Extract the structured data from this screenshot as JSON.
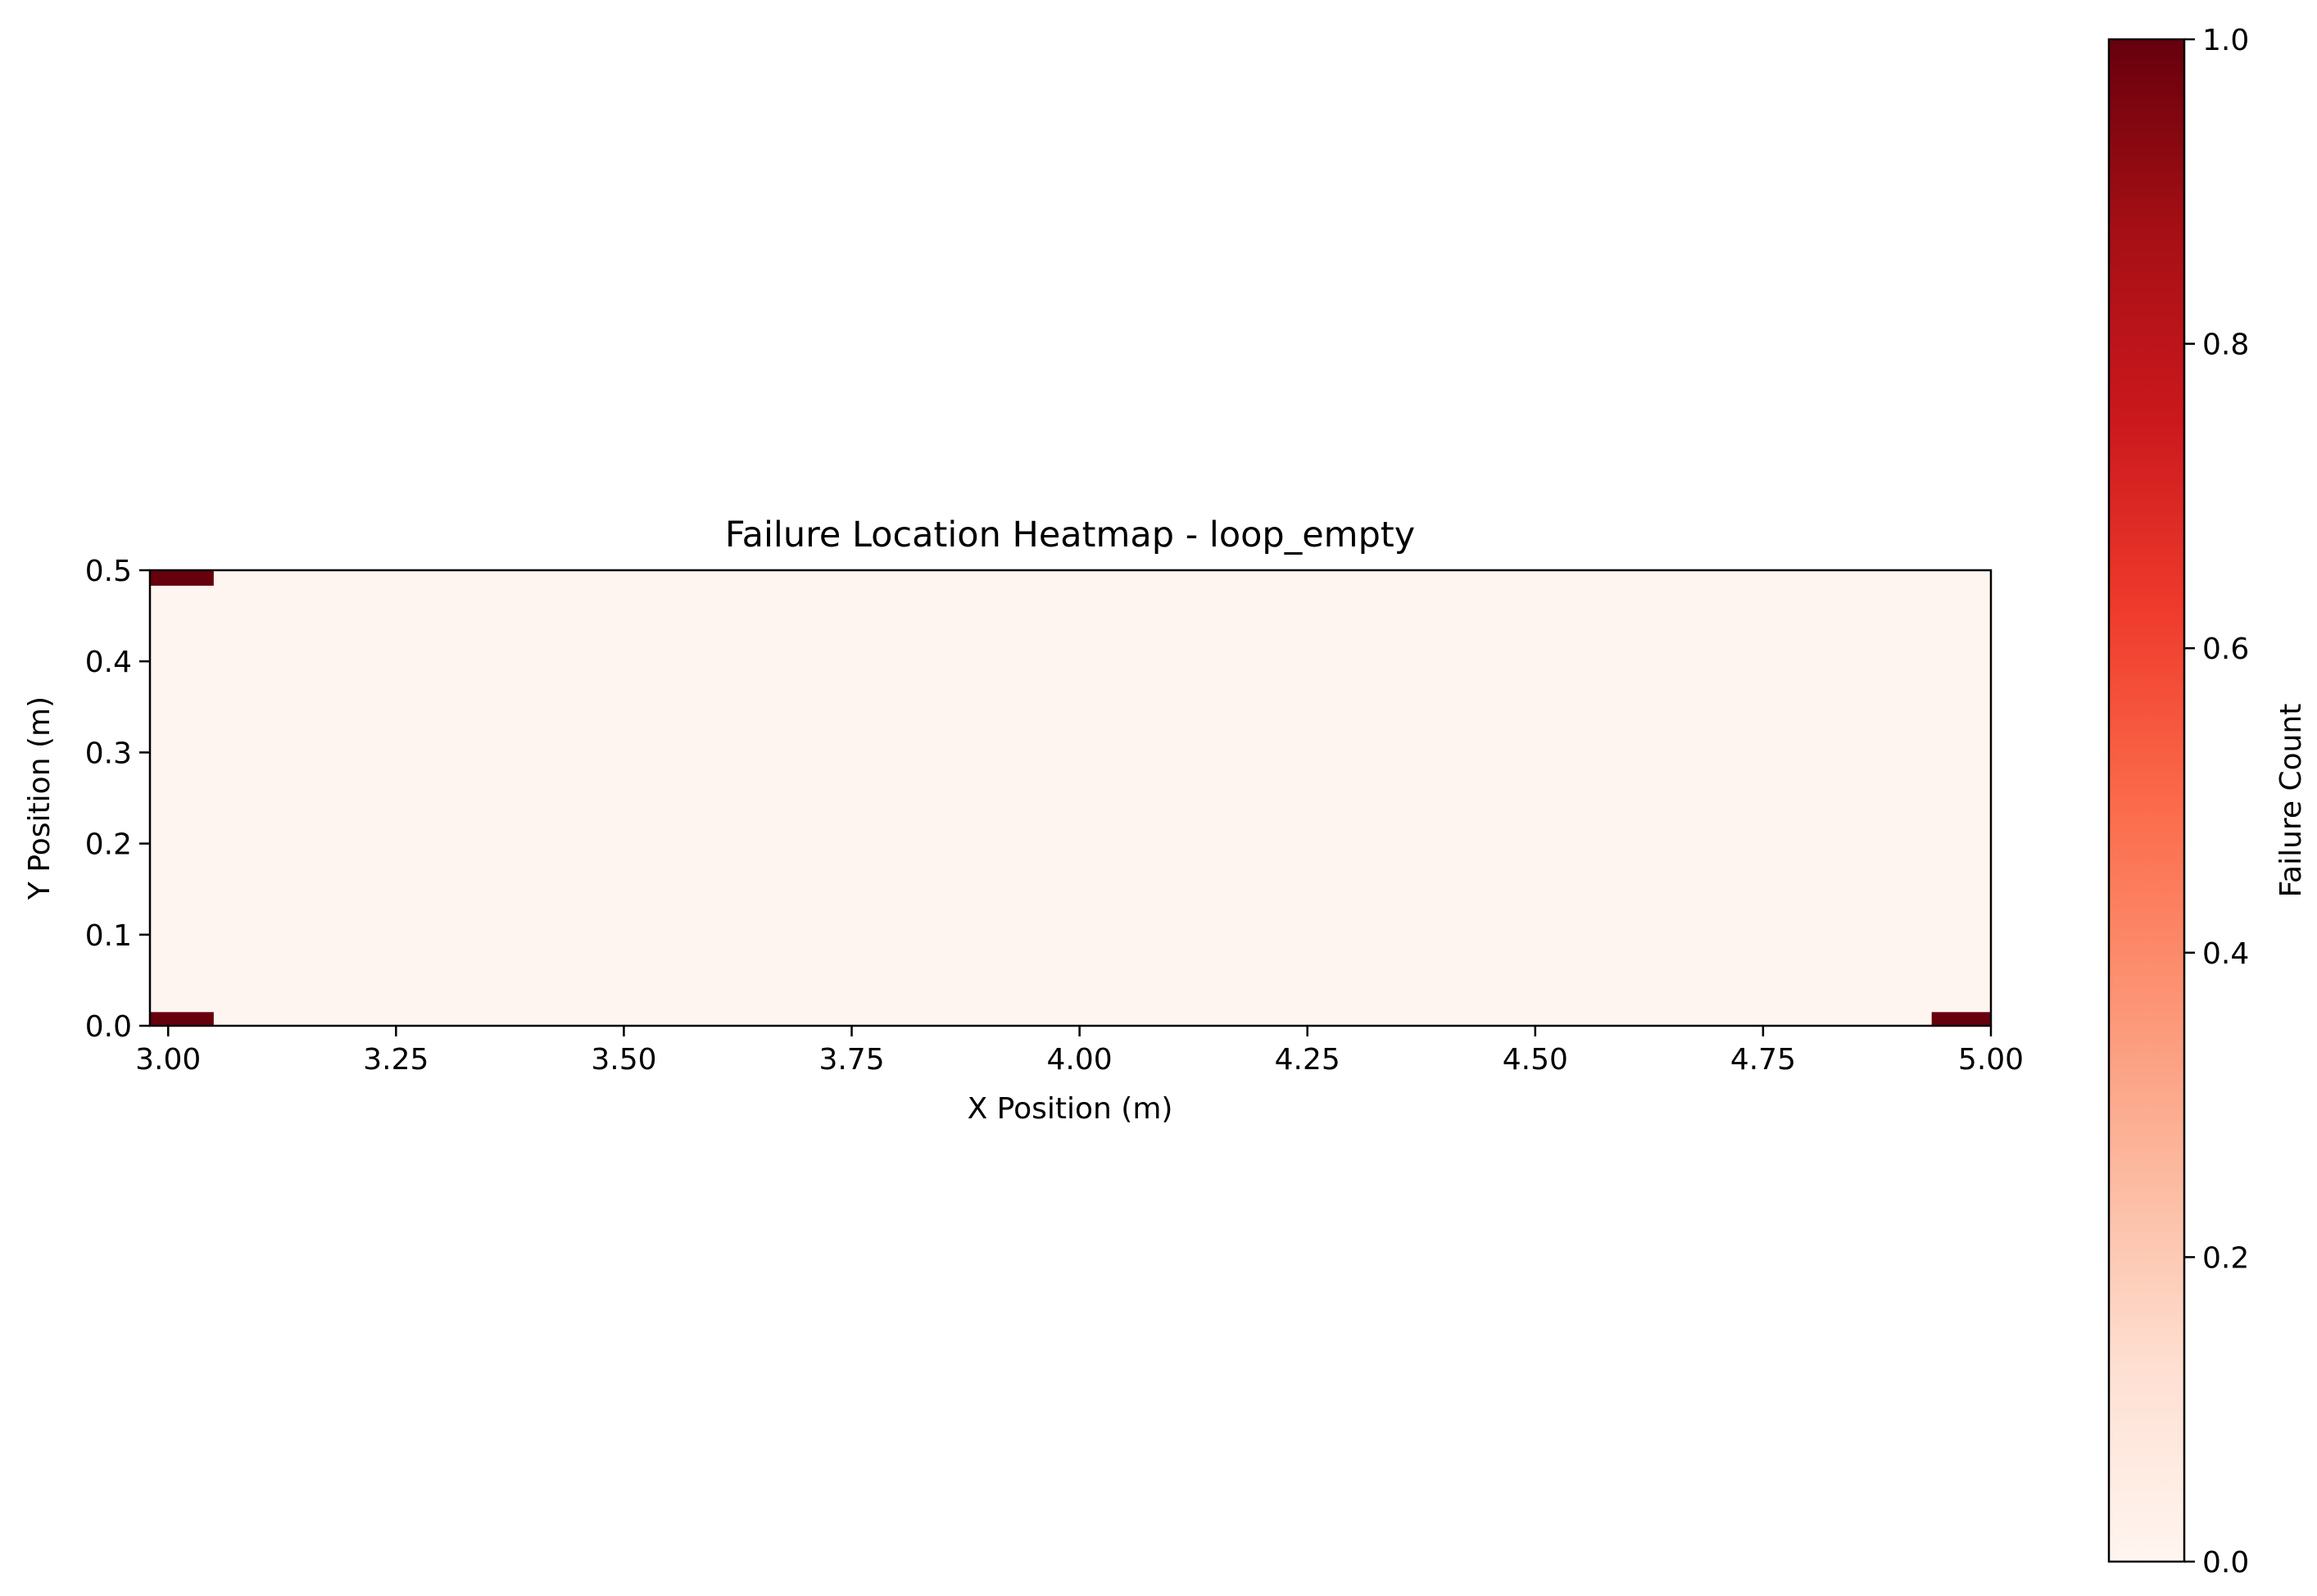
{
  "chart_data": {
    "type": "heatmap",
    "title": "Failure Location Heatmap - loop_empty",
    "xlabel": "X Position (m)",
    "ylabel": "Y Position (m)",
    "xlim": [
      2.98,
      5.0
    ],
    "ylim": [
      0.0,
      0.5
    ],
    "x_ticks": [
      "3.00",
      "3.25",
      "3.50",
      "3.75",
      "4.00",
      "4.25",
      "4.50",
      "4.75",
      "5.00"
    ],
    "y_ticks": [
      "0.0",
      "0.1",
      "0.2",
      "0.3",
      "0.4",
      "0.5"
    ],
    "grid": false,
    "background_value": 0,
    "cells": [
      {
        "x0": 2.98,
        "x1": 3.05,
        "y0": 0.483,
        "y1": 0.5,
        "value": 1
      },
      {
        "x0": 2.98,
        "x1": 3.05,
        "y0": 0.0,
        "y1": 0.015,
        "value": 1
      },
      {
        "x0": 4.935,
        "x1": 5.0,
        "y0": 0.0,
        "y1": 0.015,
        "value": 1
      }
    ],
    "colorbar": {
      "label": "Failure Count",
      "range": [
        0.0,
        1.0
      ],
      "ticks": [
        "0.0",
        "0.2",
        "0.4",
        "0.6",
        "0.8",
        "1.0"
      ],
      "colormap": "Reds",
      "color_low": "#fff5f0",
      "color_high": "#67000d"
    }
  }
}
